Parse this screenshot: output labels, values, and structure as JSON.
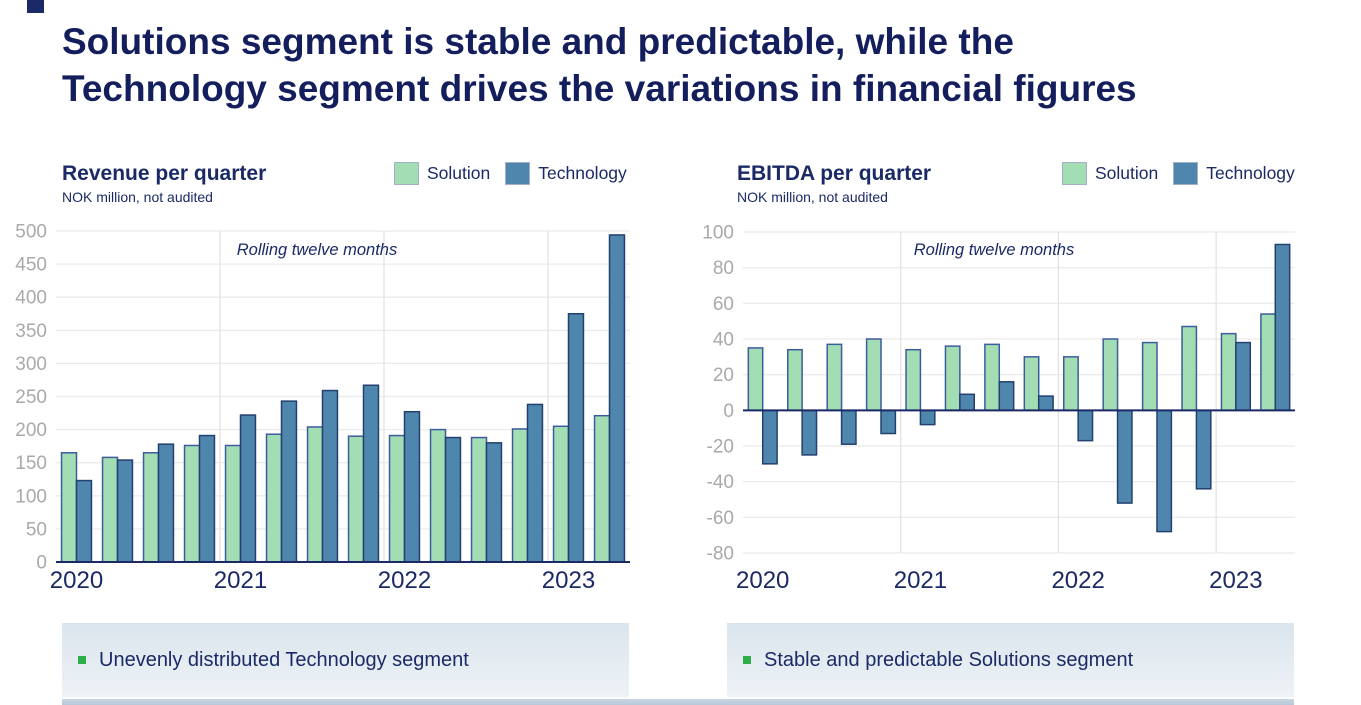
{
  "slide_title": {
    "line1": "Solutions segment is stable and predictable, while the",
    "line2": "Technology segment drives the variations in financial figures"
  },
  "callouts": {
    "left": "Unevenly distributed Technology segment",
    "right": "Stable and predictable Solutions segment"
  },
  "colors": {
    "title_navy": "#141e5c",
    "navy_text": "#1b2a66",
    "axis_gray": "#a9a9a9",
    "gridline": "#ebebeb",
    "year_gridline": "#e3e3e3",
    "solution_fill": "#a3ddb3",
    "solution_border": "#3d5c9e",
    "technology_fill": "#4e86ae",
    "technology_border": "#23406e",
    "legend_swatch_border": "#a3aec7",
    "callout_bg_top": "#dbe5ed",
    "callout_bg_bottom": "#edf2f6",
    "bullet_green": "#2eae4a",
    "strip": "#c9d6e2"
  },
  "chart_data": [
    {
      "type": "bar",
      "title": "Revenue per quarter",
      "subtitle": "NOK million, not audited",
      "annotation": "Rolling twelve months",
      "categories": [
        "2020 Q1",
        "2020 Q2",
        "2020 Q3",
        "2020 Q4",
        "2021 Q1",
        "2021 Q2",
        "2021 Q3",
        "2021 Q4",
        "2022 Q1",
        "2022 Q2",
        "2022 Q3",
        "2022 Q4",
        "2023 Q1",
        "2023 Q2"
      ],
      "x_tick_labels": [
        "2020",
        "2021",
        "2022",
        "2023"
      ],
      "series": [
        {
          "name": "Solution",
          "color": "#a3ddb3",
          "border": "#3d5c9e",
          "values": [
            165,
            158,
            165,
            176,
            176,
            193,
            204,
            190,
            191,
            200,
            188,
            201,
            205,
            221
          ]
        },
        {
          "name": "Technology",
          "color": "#4e86ae",
          "border": "#23406e",
          "values": [
            123,
            154,
            178,
            191,
            222,
            243,
            259,
            267,
            227,
            188,
            180,
            238,
            375,
            494
          ]
        }
      ],
      "ylim": [
        0,
        500
      ],
      "ytick_step": 50,
      "grid": true,
      "legend_position": "top-right"
    },
    {
      "type": "bar",
      "title": "EBITDA per quarter",
      "subtitle": "NOK million, not audited",
      "annotation": "Rolling twelve months",
      "categories": [
        "2020 Q1",
        "2020 Q2",
        "2020 Q3",
        "2020 Q4",
        "2021 Q1",
        "2021 Q2",
        "2021 Q3",
        "2021 Q4",
        "2022 Q1",
        "2022 Q2",
        "2022 Q3",
        "2022 Q4",
        "2023 Q1",
        "2023 Q2"
      ],
      "x_tick_labels": [
        "2020",
        "2021",
        "2022",
        "2023"
      ],
      "series": [
        {
          "name": "Solution",
          "color": "#a3ddb3",
          "border": "#3d5c9e",
          "values": [
            35,
            34,
            37,
            40,
            34,
            36,
            37,
            30,
            30,
            40,
            38,
            47,
            43,
            54
          ]
        },
        {
          "name": "Technology",
          "color": "#4e86ae",
          "border": "#23406e",
          "values": [
            -30,
            -25,
            -19,
            -13,
            -8,
            9,
            16,
            8,
            -17,
            -52,
            -68,
            -44,
            38,
            93
          ]
        }
      ],
      "ylim": [
        -80,
        100
      ],
      "ytick_step": 20,
      "grid": true,
      "legend_position": "top-right"
    }
  ]
}
